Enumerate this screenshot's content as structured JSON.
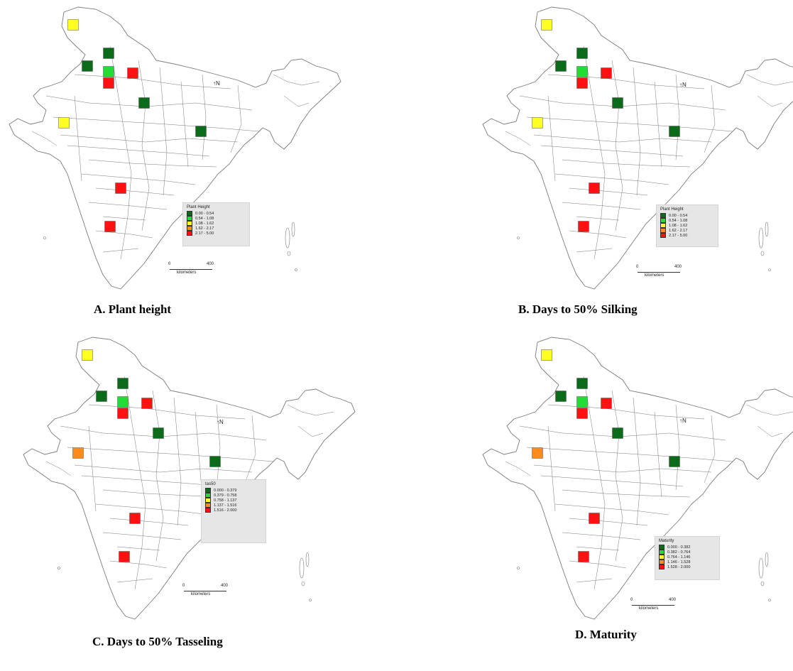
{
  "colors": {
    "dark_green": "#0b6b1a",
    "light_green": "#22dd33",
    "yellow": "#ffff22",
    "orange": "#ff8c1a",
    "red": "#ff1111",
    "outline": "#7a7a7a"
  },
  "north_label": "N",
  "scale": {
    "start": "0",
    "end": "400",
    "unit": "kilometers"
  },
  "panels": [
    {
      "caption": "A. Plant height",
      "legend_title": "Plant Height",
      "legend": [
        {
          "label": "0.00 - 0.54",
          "color": "#0b6b1a"
        },
        {
          "label": "0.54 - 1.08",
          "color": "#22dd33"
        },
        {
          "label": "1.08 - 1.62",
          "color": "#ffff22"
        },
        {
          "label": "1.62 - 2.17",
          "color": "#ff8c1a"
        },
        {
          "label": "2.17 - 5.00",
          "color": "#ff1111"
        }
      ],
      "markers": [
        {
          "site": "jammu-kashmir",
          "color": "#ffff22"
        },
        {
          "site": "himachal",
          "color": "#0b6b1a"
        },
        {
          "site": "punjab",
          "color": "#0b6b1a"
        },
        {
          "site": "haryana",
          "color": "#22dd33"
        },
        {
          "site": "uttarakhand",
          "color": "#ff1111"
        },
        {
          "site": "delhi",
          "color": "#ff1111"
        },
        {
          "site": "uttar-pradesh",
          "color": "#0b6b1a"
        },
        {
          "site": "gujarat",
          "color": "#ffff22"
        },
        {
          "site": "jharkhand",
          "color": "#0b6b1a"
        },
        {
          "site": "maharashtra",
          "color": "#ff1111"
        },
        {
          "site": "karnataka",
          "color": "#ff1111"
        }
      ]
    },
    {
      "caption": "B. Days to 50% Silking",
      "legend_title": "Plant Height",
      "legend": [
        {
          "label": "0.00 - 0.54",
          "color": "#0b6b1a"
        },
        {
          "label": "0.54 - 1.08",
          "color": "#22dd33"
        },
        {
          "label": "1.08 - 1.62",
          "color": "#ffff22"
        },
        {
          "label": "1.62 - 2.17",
          "color": "#ff8c1a"
        },
        {
          "label": "2.17 - 5.00",
          "color": "#ff1111"
        }
      ],
      "markers": [
        {
          "site": "jammu-kashmir",
          "color": "#ffff22"
        },
        {
          "site": "himachal",
          "color": "#0b6b1a"
        },
        {
          "site": "punjab",
          "color": "#0b6b1a"
        },
        {
          "site": "haryana",
          "color": "#22dd33"
        },
        {
          "site": "uttarakhand",
          "color": "#ff1111"
        },
        {
          "site": "delhi",
          "color": "#ff1111"
        },
        {
          "site": "uttar-pradesh",
          "color": "#0b6b1a"
        },
        {
          "site": "gujarat",
          "color": "#ffff22"
        },
        {
          "site": "jharkhand",
          "color": "#0b6b1a"
        },
        {
          "site": "maharashtra",
          "color": "#ff1111"
        },
        {
          "site": "karnataka",
          "color": "#ff1111"
        }
      ]
    },
    {
      "caption": "C. Days to 50% Tasseling",
      "legend_title": "tas50",
      "legend": [
        {
          "label": "0.000 - 0.379",
          "color": "#0b6b1a"
        },
        {
          "label": "0.379 - 0.758",
          "color": "#22dd33"
        },
        {
          "label": "0.758 - 1.137",
          "color": "#ffff22"
        },
        {
          "label": "1.137 - 1.516",
          "color": "#ff8c1a"
        },
        {
          "label": "1.516 - 2.000",
          "color": "#ff1111"
        }
      ],
      "markers": [
        {
          "site": "jammu-kashmir",
          "color": "#ffff22"
        },
        {
          "site": "himachal",
          "color": "#0b6b1a"
        },
        {
          "site": "punjab",
          "color": "#0b6b1a"
        },
        {
          "site": "haryana",
          "color": "#22dd33"
        },
        {
          "site": "uttarakhand",
          "color": "#ff1111"
        },
        {
          "site": "delhi",
          "color": "#ff1111"
        },
        {
          "site": "uttar-pradesh",
          "color": "#0b6b1a"
        },
        {
          "site": "gujarat",
          "color": "#ff8c1a"
        },
        {
          "site": "jharkhand",
          "color": "#0b6b1a"
        },
        {
          "site": "maharashtra",
          "color": "#ff1111"
        },
        {
          "site": "karnataka",
          "color": "#ff1111"
        }
      ]
    },
    {
      "caption": "D. Maturity",
      "legend_title": "Maturity",
      "legend": [
        {
          "label": "0.000 - 0.382",
          "color": "#0b6b1a"
        },
        {
          "label": "0.382 - 0.764",
          "color": "#22dd33"
        },
        {
          "label": "0.764 - 1.146",
          "color": "#ffff22"
        },
        {
          "label": "1.146 - 1.528",
          "color": "#ff8c1a"
        },
        {
          "label": "1.528 - 2.000",
          "color": "#ff1111"
        }
      ],
      "markers": [
        {
          "site": "jammu-kashmir",
          "color": "#ffff22"
        },
        {
          "site": "himachal",
          "color": "#0b6b1a"
        },
        {
          "site": "punjab",
          "color": "#0b6b1a"
        },
        {
          "site": "haryana",
          "color": "#22dd33"
        },
        {
          "site": "uttarakhand",
          "color": "#ff1111"
        },
        {
          "site": "delhi",
          "color": "#ff1111"
        },
        {
          "site": "uttar-pradesh",
          "color": "#0b6b1a"
        },
        {
          "site": "gujarat",
          "color": "#ff8c1a"
        },
        {
          "site": "jharkhand",
          "color": "#0b6b1a"
        },
        {
          "site": "maharashtra",
          "color": "#ff1111"
        },
        {
          "site": "karnataka",
          "color": "#ff1111"
        }
      ]
    }
  ]
}
